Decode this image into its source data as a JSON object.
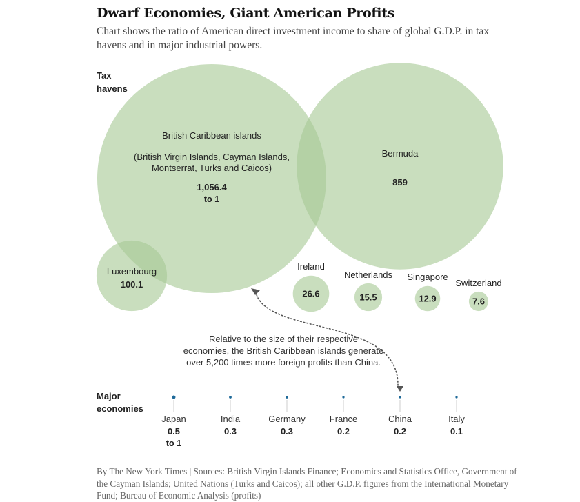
{
  "title": "Dwarf Economies, Giant American Profits",
  "subtitle": "Chart shows the ratio of American direct investment income to share of global G.D.P. in tax havens and in major industrial powers.",
  "footer": "By The New York Times | Sources: British Virgin Islands Finance; Economics and Statistics Office, Government of the Cayman Islands; United Nations (Turks and Caicos); all other G.D.P. figures from the International Monetary Fund; Bureau of Economic Analysis (profits)",
  "colors": {
    "bubble": "#a8c996",
    "dot": "#1f6a99",
    "text": "#222222",
    "annotation": "#555555"
  },
  "chart_data": {
    "type": "bubble",
    "title": "Dwarf Economies, Giant American Profits",
    "ratio_suffix": "to 1",
    "groups": [
      {
        "label_lines": [
          "Tax",
          "havens"
        ],
        "items": [
          {
            "name": "British Caribbean islands",
            "detail_lines": [
              "(British Virgin Islands, Cayman Islands,",
              "Montserrat, Turks and Caicos)"
            ],
            "value": 1056.4,
            "value_label": "1,056.4"
          },
          {
            "name": "Bermuda",
            "value": 859,
            "value_label": "859"
          },
          {
            "name": "Luxembourg",
            "value": 100.1,
            "value_label": "100.1"
          },
          {
            "name": "Ireland",
            "value": 26.6,
            "value_label": "26.6"
          },
          {
            "name": "Netherlands",
            "value": 15.5,
            "value_label": "15.5"
          },
          {
            "name": "Singapore",
            "value": 12.9,
            "value_label": "12.9"
          },
          {
            "name": "Switzerland",
            "value": 7.6,
            "value_label": "7.6"
          }
        ]
      },
      {
        "label_lines": [
          "Major",
          "economies"
        ],
        "items": [
          {
            "name": "Japan",
            "value": 0.5,
            "value_label": "0.5"
          },
          {
            "name": "India",
            "value": 0.3,
            "value_label": "0.3"
          },
          {
            "name": "Germany",
            "value": 0.3,
            "value_label": "0.3"
          },
          {
            "name": "France",
            "value": 0.2,
            "value_label": "0.2"
          },
          {
            "name": "China",
            "value": 0.2,
            "value_label": "0.2"
          },
          {
            "name": "Italy",
            "value": 0.1,
            "value_label": "0.1"
          }
        ]
      }
    ],
    "annotation_lines": [
      "Relative to the size of their respective",
      "economies, the British Caribbean islands generate",
      "over 5,200 times more foreign profits than China."
    ]
  }
}
